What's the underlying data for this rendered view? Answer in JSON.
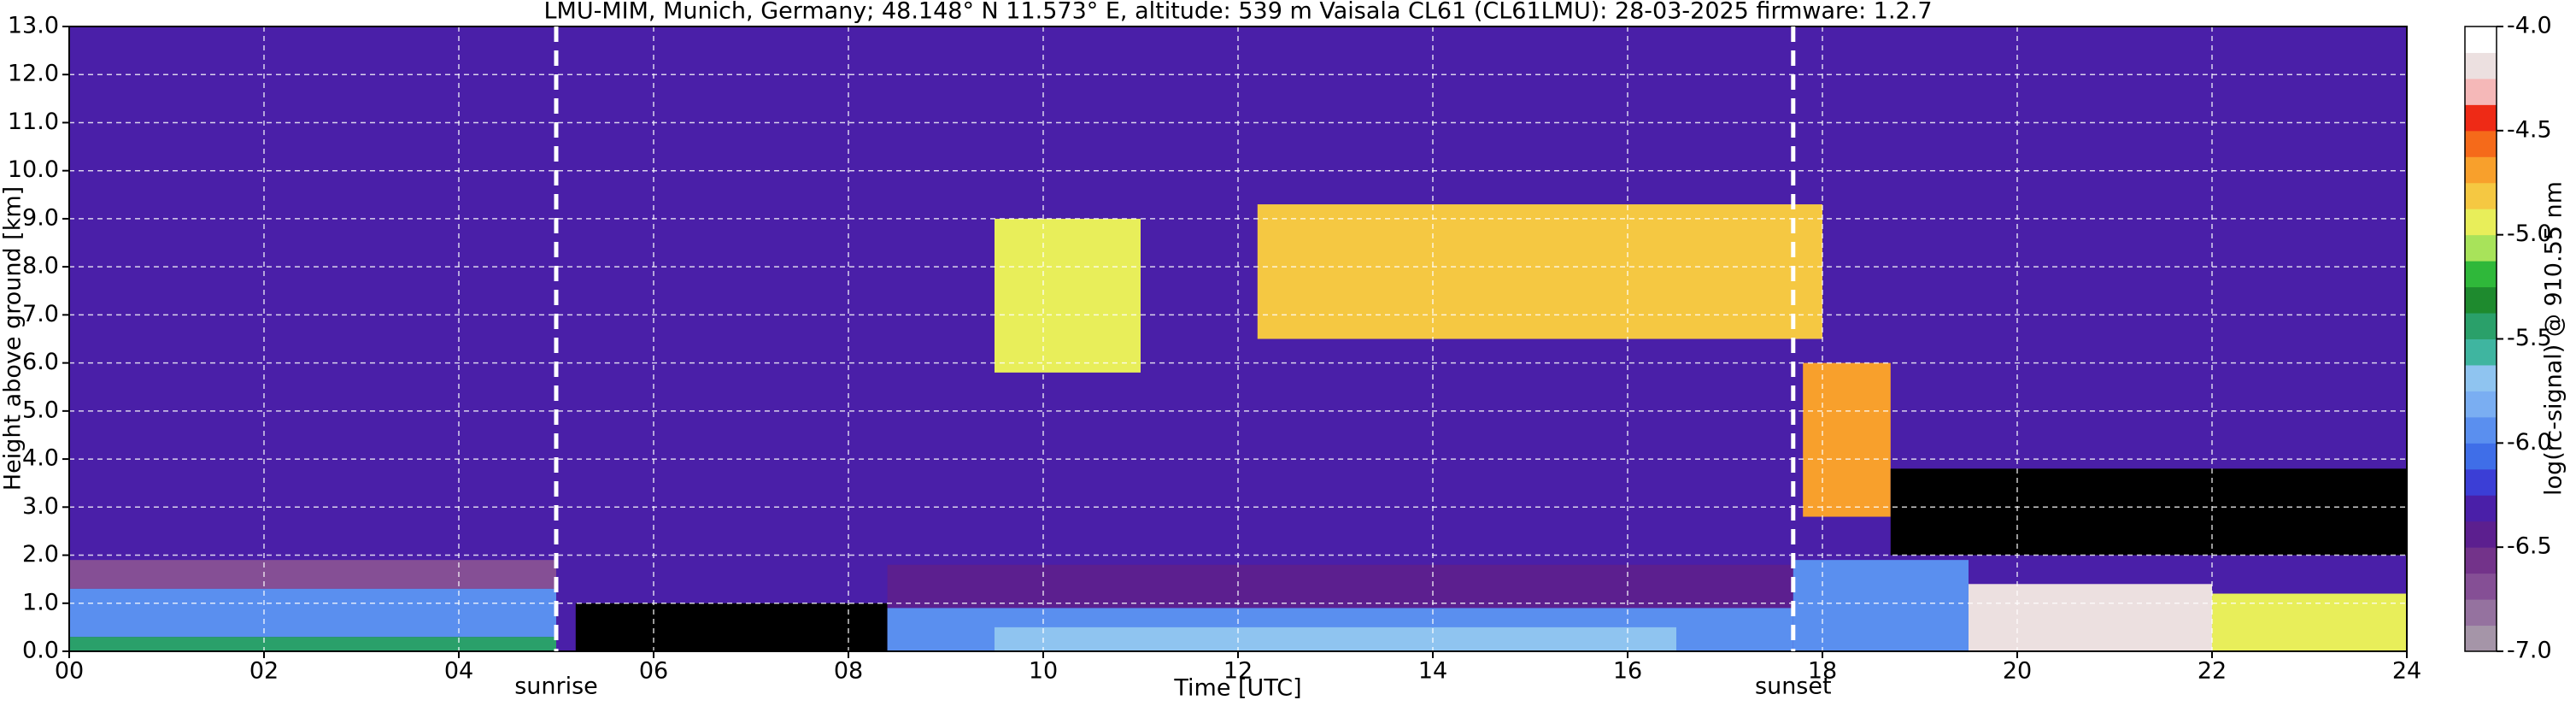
{
  "chart_data": {
    "type": "heatmap",
    "title": "LMU-MIM, Munich, Germany; 48.148° N 11.573° E, altitude: 539 m    Vaisala CL61 (CL61LMU): 28-03-2025    firmware: 1.2.7",
    "x_label": "Time [UTC]",
    "y_label": "Height above ground [km]",
    "xlim": [
      0,
      24
    ],
    "xticks": [
      {
        "value": 0,
        "label": "00"
      },
      {
        "value": 2,
        "label": "02"
      },
      {
        "value": 4,
        "label": "04"
      },
      {
        "value": 6,
        "label": "06"
      },
      {
        "value": 8,
        "label": "08"
      },
      10,
      12,
      14,
      16,
      18,
      20,
      22,
      24
    ],
    "ylim": [
      0,
      13
    ],
    "yticks": [
      {
        "value": 0,
        "label": "0.0"
      },
      {
        "value": 1,
        "label": "1.0"
      },
      {
        "value": 2,
        "label": "2.0"
      },
      {
        "value": 3,
        "label": "3.0"
      },
      {
        "value": 4,
        "label": "4.0"
      },
      {
        "value": 5,
        "label": "5.0"
      },
      {
        "value": 6,
        "label": "6.0"
      },
      {
        "value": 7,
        "label": "7.0"
      },
      {
        "value": 8,
        "label": "8.0"
      },
      {
        "value": 9,
        "label": "9.0"
      },
      {
        "value": 10,
        "label": "10.0"
      },
      {
        "value": 11,
        "label": "11.0"
      },
      {
        "value": 12,
        "label": "12.0"
      },
      {
        "value": 13,
        "label": "13.0"
      }
    ],
    "grid": true,
    "regions": [
      {
        "x": [
          0,
          24
        ],
        "y": [
          0,
          13
        ],
        "value": -6.3
      },
      {
        "x": [
          0,
          5
        ],
        "y": [
          1.3,
          1.9
        ],
        "value": -6.7
      },
      {
        "x": [
          0,
          5
        ],
        "y": [
          0.3,
          1.3
        ],
        "value": -6.0
      },
      {
        "x": [
          0,
          5
        ],
        "y": [
          0,
          0.3
        ],
        "value": -5.4
      },
      {
        "x": [
          5.2,
          8.4
        ],
        "y": [
          0,
          1.0
        ],
        "value": -7.5
      },
      {
        "x": [
          8.4,
          17.7
        ],
        "y": [
          0.9,
          1.8
        ],
        "value": -6.5
      },
      {
        "x": [
          8.4,
          17.7
        ],
        "y": [
          0,
          0.9
        ],
        "value": -6.0
      },
      {
        "x": [
          9.5,
          16.5
        ],
        "y": [
          0,
          0.5
        ],
        "value": -5.7
      },
      {
        "x": [
          9.5,
          11.0
        ],
        "y": [
          5.8,
          9.0
        ],
        "value": -5.0
      },
      {
        "x": [
          12.2,
          18.0
        ],
        "y": [
          6.5,
          9.3
        ],
        "value": -4.8
      },
      {
        "x": [
          17.8,
          18.7
        ],
        "y": [
          2.8,
          6.0
        ],
        "value": -4.7
      },
      {
        "x": [
          18.7,
          24
        ],
        "y": [
          2.0,
          3.8
        ],
        "value": -7.5
      },
      {
        "x": [
          17.7,
          19.5
        ],
        "y": [
          0,
          1.9
        ],
        "value": -6.0
      },
      {
        "x": [
          19.5,
          22
        ],
        "y": [
          0,
          1.4
        ],
        "value": -4.2
      },
      {
        "x": [
          22,
          24
        ],
        "y": [
          0,
          1.2
        ],
        "value": -4.9
      }
    ],
    "annotations": [
      {
        "x": 5.0,
        "label": "sunrise"
      },
      {
        "x": 17.7,
        "label": "sunset"
      }
    ],
    "under_color": "#000000",
    "colorbar": {
      "label": "log(rc-signal) @ 910.55 nm",
      "lim": [
        -7,
        -4
      ],
      "ticks": [
        {
          "value": -7,
          "label": "-7.0"
        },
        -6.5,
        {
          "value": -6,
          "label": "-6.0"
        },
        -5.5,
        {
          "value": -5,
          "label": "-5.0"
        },
        -4.5,
        {
          "value": -4,
          "label": "-4.0"
        }
      ],
      "colors": [
        "#a595a8",
        "#95729f",
        "#854f95",
        "#73338a",
        "#5c1f8f",
        "#4a1fa8",
        "#3b3ed6",
        "#3f6ee8",
        "#5a8fef",
        "#7aaef2",
        "#8fc4f0",
        "#3fb5a0",
        "#2aa06a",
        "#1e8a2e",
        "#2fb83a",
        "#a8e35a",
        "#e8ee5a",
        "#f5c842",
        "#f8a02c",
        "#f56a1a",
        "#ee2a16",
        "#f5b8b8",
        "#ece0e0",
        "#ffffff"
      ]
    }
  }
}
